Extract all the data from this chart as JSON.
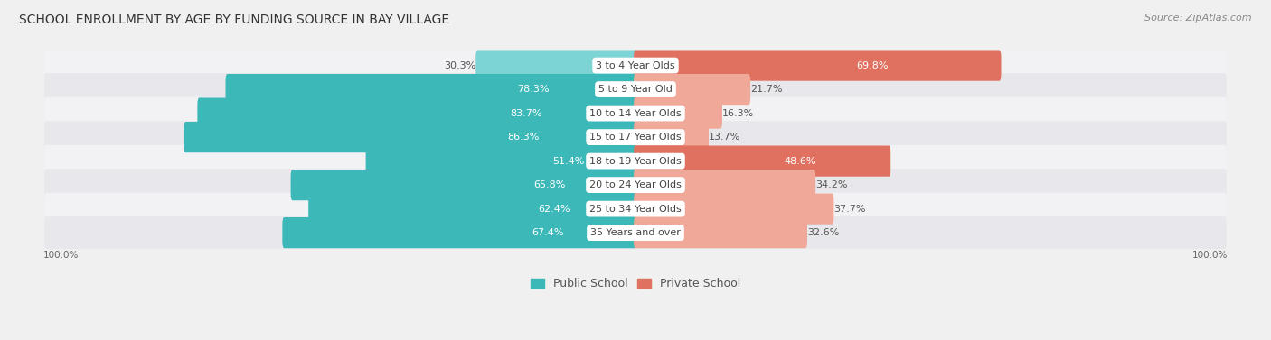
{
  "title": "SCHOOL ENROLLMENT BY AGE BY FUNDING SOURCE IN BAY VILLAGE",
  "source": "Source: ZipAtlas.com",
  "categories": [
    "3 to 4 Year Olds",
    "5 to 9 Year Old",
    "10 to 14 Year Olds",
    "15 to 17 Year Olds",
    "18 to 19 Year Olds",
    "20 to 24 Year Olds",
    "25 to 34 Year Olds",
    "35 Years and over"
  ],
  "public_values": [
    30.3,
    78.3,
    83.7,
    86.3,
    51.4,
    65.8,
    62.4,
    67.4
  ],
  "private_values": [
    69.8,
    21.7,
    16.3,
    13.7,
    48.6,
    34.2,
    37.7,
    32.6
  ],
  "public_color_dark": "#3db8b8",
  "public_color_light": "#7dd4d4",
  "private_color_dark": "#e07060",
  "private_color_light": "#f0a898",
  "public_label": "Public School",
  "private_label": "Private School",
  "bg_color": "#f0f0f0",
  "row_colors": [
    "#f2f2f4",
    "#e8e8ec"
  ],
  "axis_label_left": "100.0%",
  "axis_label_right": "100.0%",
  "title_fontsize": 10,
  "source_fontsize": 8,
  "bar_label_fontsize": 8,
  "category_fontsize": 8,
  "legend_fontsize": 9,
  "pub_inside_threshold": 45,
  "priv_inside_threshold": 45
}
